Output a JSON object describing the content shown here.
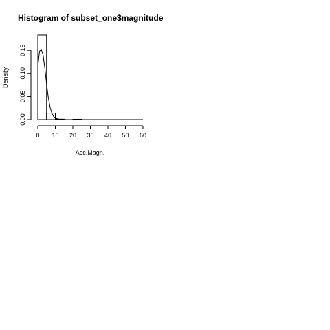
{
  "chart_data": {
    "type": "bar",
    "title": "Histogram of subset_one$magnitude",
    "xlabel": "Acc.Magn.",
    "ylabel": "Density",
    "xlim": [
      0,
      60
    ],
    "ylim": [
      0,
      0.18
    ],
    "x_ticks": [
      "0",
      "10",
      "20",
      "30",
      "40",
      "50",
      "60"
    ],
    "y_ticks": [
      "0.00",
      "0.05",
      "0.10",
      "0.15"
    ],
    "bins": [
      {
        "start": 0,
        "end": 5,
        "value": 0.183
      },
      {
        "start": 5,
        "end": 10,
        "value": 0.014
      },
      {
        "start": 10,
        "end": 15,
        "value": 0.001
      },
      {
        "start": 15,
        "end": 20,
        "value": 0.0
      },
      {
        "start": 20,
        "end": 25,
        "value": 0.0008
      },
      {
        "start": 25,
        "end": 30,
        "value": 0.0
      },
      {
        "start": 30,
        "end": 35,
        "value": 0.0
      },
      {
        "start": 35,
        "end": 40,
        "value": 0.0
      },
      {
        "start": 40,
        "end": 45,
        "value": 0.0
      },
      {
        "start": 45,
        "end": 50,
        "value": 0.0
      },
      {
        "start": 50,
        "end": 55,
        "value": 0.0
      },
      {
        "start": 55,
        "end": 60,
        "value": 0.0
      }
    ],
    "density_curve": {
      "x": [
        0.0,
        1,
        2,
        3,
        4,
        5,
        6,
        7,
        8,
        9,
        10,
        12,
        14,
        16,
        20,
        30,
        40,
        60
      ],
      "y": [
        0.115,
        0.148,
        0.152,
        0.14,
        0.112,
        0.078,
        0.048,
        0.027,
        0.014,
        0.007,
        0.003,
        0.001,
        0.0004,
        0.0001,
        0.0,
        0.0,
        0.0,
        0.0
      ]
    },
    "colors": {
      "line": "#000000",
      "fill": "#ffffff"
    }
  }
}
